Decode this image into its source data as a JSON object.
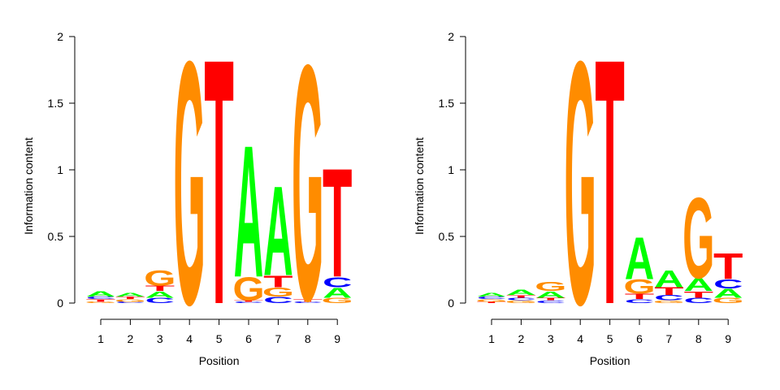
{
  "chart_data": [
    {
      "type": "sequence-logo",
      "xlabel": "Position",
      "ylabel": "Information content",
      "x": [
        1,
        2,
        3,
        4,
        5,
        6,
        7,
        8,
        9
      ],
      "ylim": [
        0,
        2
      ],
      "yticks": [
        0,
        0.5,
        1,
        1.5,
        2
      ],
      "ytick_labels": [
        "0",
        "0.5",
        "1",
        "1.5",
        "2"
      ],
      "grid": false,
      "columns": [
        [
          {
            "letter": "G",
            "height": 0.01
          },
          {
            "letter": "T",
            "height": 0.02
          },
          {
            "letter": "C",
            "height": 0.02
          },
          {
            "letter": "A",
            "height": 0.04
          }
        ],
        [
          {
            "letter": "C",
            "height": 0.01
          },
          {
            "letter": "G",
            "height": 0.02
          },
          {
            "letter": "T",
            "height": 0.02
          },
          {
            "letter": "A",
            "height": 0.03
          }
        ],
        [
          {
            "letter": "C",
            "height": 0.04
          },
          {
            "letter": "A",
            "height": 0.05
          },
          {
            "letter": "T",
            "height": 0.04
          },
          {
            "letter": "G",
            "height": 0.12
          }
        ],
        [
          {
            "letter": "G",
            "height": 1.9
          }
        ],
        [
          {
            "letter": "T",
            "height": 1.92
          }
        ],
        [
          {
            "letter": "C",
            "height": 0.01
          },
          {
            "letter": "T",
            "height": 0.01
          },
          {
            "letter": "G",
            "height": 0.18
          },
          {
            "letter": "A",
            "height": 1.03
          }
        ],
        [
          {
            "letter": "C",
            "height": 0.05
          },
          {
            "letter": "G",
            "height": 0.07
          },
          {
            "letter": "T",
            "height": 0.09
          },
          {
            "letter": "A",
            "height": 0.7
          }
        ],
        [
          {
            "letter": "C",
            "height": 0.01
          },
          {
            "letter": "T",
            "height": 0.02
          },
          {
            "letter": "G",
            "height": 1.84
          }
        ],
        [
          {
            "letter": "G",
            "height": 0.04
          },
          {
            "letter": "A",
            "height": 0.08
          },
          {
            "letter": "C",
            "height": 0.08
          },
          {
            "letter": "T",
            "height": 0.85
          }
        ]
      ]
    },
    {
      "type": "sequence-logo",
      "xlabel": "Position",
      "ylabel": "Information content",
      "x": [
        1,
        2,
        3,
        4,
        5,
        6,
        7,
        8,
        9
      ],
      "ylim": [
        0,
        2
      ],
      "yticks": [
        0,
        0.5,
        1,
        1.5,
        2
      ],
      "ytick_labels": [
        "0",
        "0.5",
        "1",
        "1.5",
        "2"
      ],
      "grid": false,
      "columns": [
        [
          {
            "letter": "T",
            "height": 0.01
          },
          {
            "letter": "G",
            "height": 0.02
          },
          {
            "letter": "C",
            "height": 0.02
          },
          {
            "letter": "A",
            "height": 0.03
          }
        ],
        [
          {
            "letter": "G",
            "height": 0.02
          },
          {
            "letter": "C",
            "height": 0.02
          },
          {
            "letter": "T",
            "height": 0.02
          },
          {
            "letter": "A",
            "height": 0.04
          }
        ],
        [
          {
            "letter": "C",
            "height": 0.02
          },
          {
            "letter": "T",
            "height": 0.02
          },
          {
            "letter": "A",
            "height": 0.05
          },
          {
            "letter": "G",
            "height": 0.07
          }
        ],
        [
          {
            "letter": "G",
            "height": 1.9
          }
        ],
        [
          {
            "letter": "T",
            "height": 1.92
          }
        ],
        [
          {
            "letter": "C",
            "height": 0.03
          },
          {
            "letter": "T",
            "height": 0.04
          },
          {
            "letter": "G",
            "height": 0.11
          },
          {
            "letter": "A",
            "height": 0.33
          }
        ],
        [
          {
            "letter": "G",
            "height": 0.02
          },
          {
            "letter": "C",
            "height": 0.04
          },
          {
            "letter": "T",
            "height": 0.06
          },
          {
            "letter": "A",
            "height": 0.13
          }
        ],
        [
          {
            "letter": "C",
            "height": 0.04
          },
          {
            "letter": "T",
            "height": 0.05
          },
          {
            "letter": "A",
            "height": 0.1
          },
          {
            "letter": "G",
            "height": 0.63
          }
        ],
        [
          {
            "letter": "G",
            "height": 0.04
          },
          {
            "letter": "A",
            "height": 0.07
          },
          {
            "letter": "C",
            "height": 0.07
          },
          {
            "letter": "T",
            "height": 0.2
          }
        ]
      ]
    }
  ],
  "colors": {
    "A": "#00ff00",
    "C": "#0000ff",
    "G": "#ff8c00",
    "T": "#ff0000"
  }
}
